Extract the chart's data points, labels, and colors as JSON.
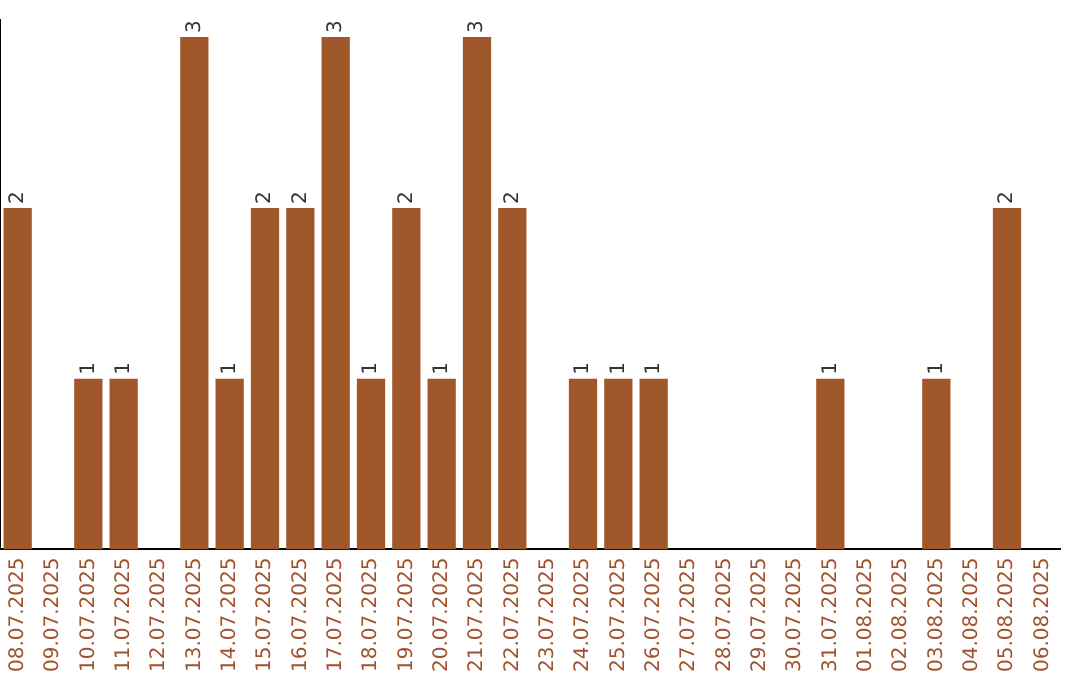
{
  "chart_data": {
    "type": "bar",
    "categories": [
      "08.07.2025",
      "09.07.2025",
      "10.07.2025",
      "11.07.2025",
      "12.07.2025",
      "13.07.2025",
      "14.07.2025",
      "15.07.2025",
      "16.07.2025",
      "17.07.2025",
      "18.07.2025",
      "19.07.2025",
      "20.07.2025",
      "21.07.2025",
      "22.07.2025",
      "23.07.2025",
      "24.07.2025",
      "25.07.2025",
      "26.07.2025",
      "27.07.2025",
      "28.07.2025",
      "29.07.2025",
      "30.07.2025",
      "31.07.2025",
      "01.08.2025",
      "02.08.2025",
      "03.08.2025",
      "04.08.2025",
      "05.08.2025",
      "06.08.2025"
    ],
    "values": [
      2,
      0,
      1,
      1,
      0,
      3,
      1,
      2,
      2,
      3,
      1,
      2,
      1,
      3,
      2,
      0,
      1,
      1,
      1,
      0,
      0,
      0,
      0,
      1,
      0,
      0,
      1,
      0,
      2,
      0
    ],
    "value_labels": [
      "2",
      null,
      "1",
      "1",
      null,
      "3",
      "1",
      "2",
      "2",
      "3",
      "1",
      "2",
      "1",
      "3",
      "2",
      null,
      "1",
      "1",
      "1",
      null,
      null,
      null,
      null,
      "1",
      null,
      null,
      "1",
      null,
      "2",
      null
    ],
    "color": "#a0582a",
    "ylim": [
      0,
      3.1
    ],
    "tick_labels": "x",
    "grid": false,
    "legend": false
  }
}
